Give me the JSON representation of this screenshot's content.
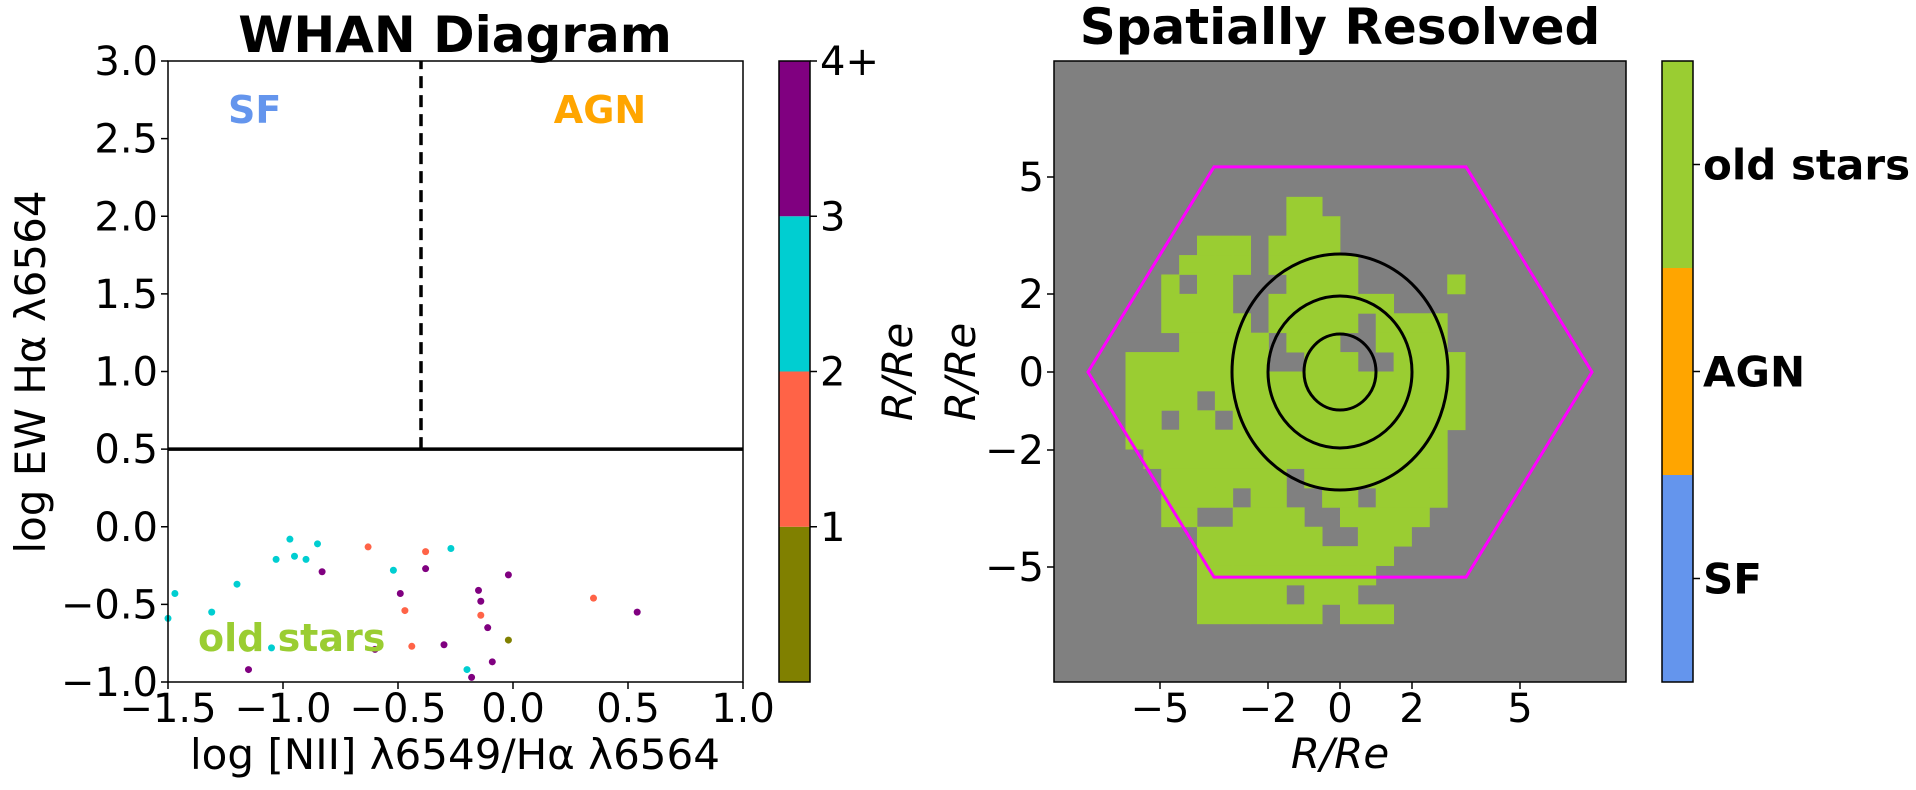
{
  "chart_data": [
    {
      "type": "scatter",
      "title": "WHAN Diagram",
      "xlabel": "log [NII] λ6549/Hα λ6564",
      "ylabel": "log EW Hα λ6564",
      "xlim": [
        -1.5,
        1.0
      ],
      "ylim": [
        -1.0,
        3.0
      ],
      "xticks": [
        "−1.5",
        "−1.0",
        "−0.5",
        "0.0",
        "0.5",
        "1.0"
      ],
      "yticks": [
        "−1.0",
        "−0.5",
        "0.0",
        "0.5",
        "1.0",
        "1.5",
        "2.0",
        "2.5",
        "3.0"
      ],
      "region_labels": [
        {
          "text": "SF",
          "color": "#6495ED"
        },
        {
          "text": "AGN",
          "color": "#FFA500"
        },
        {
          "text": "old stars",
          "color": "#9ACD32"
        }
      ],
      "lines": [
        {
          "kind": "horizontal",
          "y": 0.5,
          "style": "solid",
          "color": "#000000"
        },
        {
          "kind": "vertical",
          "x": -0.4,
          "y_from": 0.5,
          "y_to": 3.0,
          "style": "dashed",
          "color": "#000000"
        }
      ],
      "colorbar": {
        "label": "R/Re",
        "ticks": [
          "1",
          "2",
          "3",
          "4+"
        ],
        "bins": [
          {
            "from": 0,
            "to": 1,
            "color": "#808000"
          },
          {
            "from": 1,
            "to": 2,
            "color": "#FF6347"
          },
          {
            "from": 2,
            "to": 3,
            "color": "#00CED1"
          },
          {
            "from": 3,
            "to": 4,
            "color": "#800080"
          }
        ]
      },
      "points": [
        {
          "x": -1.5,
          "y": -0.59,
          "c": "#00CED1"
        },
        {
          "x": -1.47,
          "y": -0.43,
          "c": "#00CED1"
        },
        {
          "x": -1.31,
          "y": -0.55,
          "c": "#00CED1"
        },
        {
          "x": -1.2,
          "y": -0.37,
          "c": "#00CED1"
        },
        {
          "x": -1.15,
          "y": -0.92,
          "c": "#800080"
        },
        {
          "x": -1.05,
          "y": -0.78,
          "c": "#00CED1"
        },
        {
          "x": -1.03,
          "y": -0.21,
          "c": "#00CED1"
        },
        {
          "x": -0.97,
          "y": -0.08,
          "c": "#00CED1"
        },
        {
          "x": -0.95,
          "y": -0.19,
          "c": "#00CED1"
        },
        {
          "x": -0.9,
          "y": -0.21,
          "c": "#00CED1"
        },
        {
          "x": -0.85,
          "y": -0.11,
          "c": "#00CED1"
        },
        {
          "x": -0.83,
          "y": -0.29,
          "c": "#800080"
        },
        {
          "x": -0.63,
          "y": -0.13,
          "c": "#FF6347"
        },
        {
          "x": -0.6,
          "y": -0.79,
          "c": "#800080"
        },
        {
          "x": -0.52,
          "y": -0.28,
          "c": "#00CED1"
        },
        {
          "x": -0.49,
          "y": -0.43,
          "c": "#800080"
        },
        {
          "x": -0.47,
          "y": -0.54,
          "c": "#FF6347"
        },
        {
          "x": -0.44,
          "y": -0.77,
          "c": "#FF6347"
        },
        {
          "x": -0.38,
          "y": -0.16,
          "c": "#FF6347"
        },
        {
          "x": -0.38,
          "y": -0.27,
          "c": "#800080"
        },
        {
          "x": -0.3,
          "y": -0.76,
          "c": "#800080"
        },
        {
          "x": -0.27,
          "y": -0.14,
          "c": "#00CED1"
        },
        {
          "x": -0.2,
          "y": -0.92,
          "c": "#00CED1"
        },
        {
          "x": -0.18,
          "y": -0.97,
          "c": "#800080"
        },
        {
          "x": -0.15,
          "y": -0.41,
          "c": "#800080"
        },
        {
          "x": -0.14,
          "y": -0.48,
          "c": "#800080"
        },
        {
          "x": -0.14,
          "y": -0.57,
          "c": "#FF6347"
        },
        {
          "x": -0.11,
          "y": -0.65,
          "c": "#800080"
        },
        {
          "x": -0.09,
          "y": -0.87,
          "c": "#800080"
        },
        {
          "x": -0.02,
          "y": -0.31,
          "c": "#800080"
        },
        {
          "x": -0.02,
          "y": -0.73,
          "c": "#808000"
        },
        {
          "x": 0.35,
          "y": -0.46,
          "c": "#FF6347"
        },
        {
          "x": 0.54,
          "y": -0.55,
          "c": "#800080"
        }
      ]
    },
    {
      "type": "heatmap",
      "title": "Spatially Resolved",
      "xlabel": "R/Re",
      "ylabel": "R/Re",
      "background": "#808080",
      "xticks": [
        "−5",
        "−2",
        "0",
        "2",
        "5"
      ],
      "yticks": [
        "5",
        "2",
        "0",
        "−2",
        "−5"
      ],
      "tick_values": [
        -5,
        -2,
        0,
        2,
        5
      ],
      "grid_size": 32,
      "pixel_color": "#9ACD32",
      "hexagon_color": "#FF00FF",
      "ellipse_color": "#000000",
      "colorbar": {
        "categories": [
          {
            "label": "SF",
            "color": "#6495ED"
          },
          {
            "label": "AGN",
            "color": "#FFA500"
          },
          {
            "label": "old stars",
            "color": "#9ACD32"
          }
        ]
      },
      "pixels_old_stars": [
        [
          7,
          13
        ],
        [
          7,
          14
        ],
        [
          8,
          13
        ],
        [
          8,
          14
        ],
        [
          8,
          15
        ],
        [
          9,
          8
        ],
        [
          9,
          9
        ],
        [
          9,
          10
        ],
        [
          9,
          12
        ],
        [
          9,
          13
        ],
        [
          9,
          14
        ],
        [
          9,
          15
        ],
        [
          10,
          7
        ],
        [
          10,
          8
        ],
        [
          10,
          9
        ],
        [
          10,
          10
        ],
        [
          10,
          12
        ],
        [
          10,
          13
        ],
        [
          10,
          14
        ],
        [
          10,
          15
        ],
        [
          10,
          16
        ],
        [
          11,
          6
        ],
        [
          11,
          8
        ],
        [
          11,
          9
        ],
        [
          11,
          13
        ],
        [
          11,
          14
        ],
        [
          11,
          15
        ],
        [
          11,
          16
        ],
        [
          11,
          22
        ],
        [
          12,
          6
        ],
        [
          12,
          7
        ],
        [
          12,
          8
        ],
        [
          12,
          9
        ],
        [
          12,
          12
        ],
        [
          12,
          13
        ],
        [
          12,
          14
        ],
        [
          12,
          15
        ],
        [
          12,
          16
        ],
        [
          12,
          17
        ],
        [
          12,
          18
        ],
        [
          13,
          6
        ],
        [
          13,
          7
        ],
        [
          13,
          8
        ],
        [
          13,
          9
        ],
        [
          13,
          10
        ],
        [
          13,
          12
        ],
        [
          13,
          13
        ],
        [
          13,
          14
        ],
        [
          13,
          15
        ],
        [
          13,
          16
        ],
        [
          13,
          18
        ],
        [
          13,
          19
        ],
        [
          13,
          20
        ],
        [
          13,
          21
        ],
        [
          14,
          7
        ],
        [
          14,
          8
        ],
        [
          14,
          9
        ],
        [
          14,
          10
        ],
        [
          14,
          11
        ],
        [
          14,
          13
        ],
        [
          14,
          14
        ],
        [
          14,
          15
        ],
        [
          14,
          18
        ],
        [
          14,
          19
        ],
        [
          14,
          20
        ],
        [
          14,
          21
        ],
        [
          15,
          4
        ],
        [
          15,
          5
        ],
        [
          15,
          6
        ],
        [
          15,
          7
        ],
        [
          15,
          8
        ],
        [
          15,
          9
        ],
        [
          15,
          10
        ],
        [
          15,
          11
        ],
        [
          15,
          14
        ],
        [
          15,
          15
        ],
        [
          15,
          16
        ],
        [
          15,
          19
        ],
        [
          15,
          20
        ],
        [
          15,
          21
        ],
        [
          15,
          22
        ],
        [
          16,
          4
        ],
        [
          16,
          5
        ],
        [
          16,
          6
        ],
        [
          16,
          7
        ],
        [
          16,
          8
        ],
        [
          16,
          9
        ],
        [
          16,
          10
        ],
        [
          16,
          11
        ],
        [
          16,
          12
        ],
        [
          16,
          13
        ],
        [
          16,
          14
        ],
        [
          16,
          15
        ],
        [
          16,
          16
        ],
        [
          16,
          17
        ],
        [
          16,
          18
        ],
        [
          16,
          19
        ],
        [
          16,
          20
        ],
        [
          16,
          21
        ],
        [
          16,
          22
        ],
        [
          17,
          4
        ],
        [
          17,
          5
        ],
        [
          17,
          6
        ],
        [
          17,
          7
        ],
        [
          17,
          9
        ],
        [
          17,
          10
        ],
        [
          17,
          11
        ],
        [
          17,
          12
        ],
        [
          17,
          13
        ],
        [
          17,
          14
        ],
        [
          17,
          15
        ],
        [
          17,
          16
        ],
        [
          17,
          17
        ],
        [
          17,
          18
        ],
        [
          17,
          19
        ],
        [
          17,
          20
        ],
        [
          17,
          21
        ],
        [
          17,
          22
        ],
        [
          18,
          4
        ],
        [
          18,
          5
        ],
        [
          18,
          7
        ],
        [
          18,
          8
        ],
        [
          18,
          10
        ],
        [
          18,
          11
        ],
        [
          18,
          12
        ],
        [
          18,
          13
        ],
        [
          18,
          14
        ],
        [
          18,
          15
        ],
        [
          18,
          16
        ],
        [
          18,
          17
        ],
        [
          18,
          18
        ],
        [
          18,
          19
        ],
        [
          18,
          20
        ],
        [
          18,
          21
        ],
        [
          18,
          22
        ],
        [
          19,
          4
        ],
        [
          19,
          5
        ],
        [
          19,
          6
        ],
        [
          19,
          7
        ],
        [
          19,
          8
        ],
        [
          19,
          9
        ],
        [
          19,
          10
        ],
        [
          19,
          11
        ],
        [
          19,
          12
        ],
        [
          19,
          13
        ],
        [
          19,
          14
        ],
        [
          19,
          15
        ],
        [
          19,
          16
        ],
        [
          19,
          17
        ],
        [
          19,
          18
        ],
        [
          19,
          19
        ],
        [
          19,
          20
        ],
        [
          19,
          21
        ],
        [
          20,
          5
        ],
        [
          20,
          6
        ],
        [
          20,
          7
        ],
        [
          20,
          8
        ],
        [
          20,
          9
        ],
        [
          20,
          10
        ],
        [
          20,
          11
        ],
        [
          20,
          12
        ],
        [
          20,
          13
        ],
        [
          20,
          14
        ],
        [
          20,
          15
        ],
        [
          20,
          16
        ],
        [
          20,
          17
        ],
        [
          20,
          18
        ],
        [
          20,
          19
        ],
        [
          20,
          20
        ],
        [
          20,
          21
        ],
        [
          21,
          6
        ],
        [
          21,
          7
        ],
        [
          21,
          8
        ],
        [
          21,
          9
        ],
        [
          21,
          10
        ],
        [
          21,
          11
        ],
        [
          21,
          12
        ],
        [
          21,
          14
        ],
        [
          21,
          15
        ],
        [
          21,
          16
        ],
        [
          21,
          17
        ],
        [
          21,
          18
        ],
        [
          21,
          19
        ],
        [
          21,
          20
        ],
        [
          21,
          21
        ],
        [
          22,
          6
        ],
        [
          22,
          7
        ],
        [
          22,
          8
        ],
        [
          22,
          9
        ],
        [
          22,
          11
        ],
        [
          22,
          12
        ],
        [
          22,
          15
        ],
        [
          22,
          16
        ],
        [
          22,
          18
        ],
        [
          22,
          19
        ],
        [
          22,
          20
        ],
        [
          22,
          21
        ],
        [
          23,
          6
        ],
        [
          23,
          7
        ],
        [
          23,
          10
        ],
        [
          23,
          11
        ],
        [
          23,
          12
        ],
        [
          23,
          13
        ],
        [
          23,
          16
        ],
        [
          23,
          17
        ],
        [
          23,
          18
        ],
        [
          23,
          19
        ],
        [
          23,
          20
        ],
        [
          24,
          8
        ],
        [
          24,
          9
        ],
        [
          24,
          10
        ],
        [
          24,
          11
        ],
        [
          24,
          12
        ],
        [
          24,
          13
        ],
        [
          24,
          14
        ],
        [
          24,
          17
        ],
        [
          24,
          18
        ],
        [
          24,
          19
        ],
        [
          25,
          8
        ],
        [
          25,
          9
        ],
        [
          25,
          10
        ],
        [
          25,
          11
        ],
        [
          25,
          12
        ],
        [
          25,
          13
        ],
        [
          25,
          14
        ],
        [
          25,
          15
        ],
        [
          25,
          16
        ],
        [
          25,
          17
        ],
        [
          25,
          18
        ],
        [
          26,
          8
        ],
        [
          26,
          9
        ],
        [
          26,
          10
        ],
        [
          26,
          11
        ],
        [
          26,
          12
        ],
        [
          26,
          13
        ],
        [
          26,
          14
        ],
        [
          26,
          15
        ],
        [
          26,
          16
        ],
        [
          26,
          17
        ],
        [
          27,
          8
        ],
        [
          27,
          9
        ],
        [
          27,
          10
        ],
        [
          27,
          11
        ],
        [
          27,
          12
        ],
        [
          27,
          14
        ],
        [
          27,
          15
        ],
        [
          27,
          16
        ],
        [
          28,
          8
        ],
        [
          28,
          9
        ],
        [
          28,
          10
        ],
        [
          28,
          11
        ],
        [
          28,
          12
        ],
        [
          28,
          13
        ],
        [
          28,
          14
        ],
        [
          28,
          16
        ],
        [
          28,
          17
        ],
        [
          28,
          18
        ]
      ]
    }
  ]
}
